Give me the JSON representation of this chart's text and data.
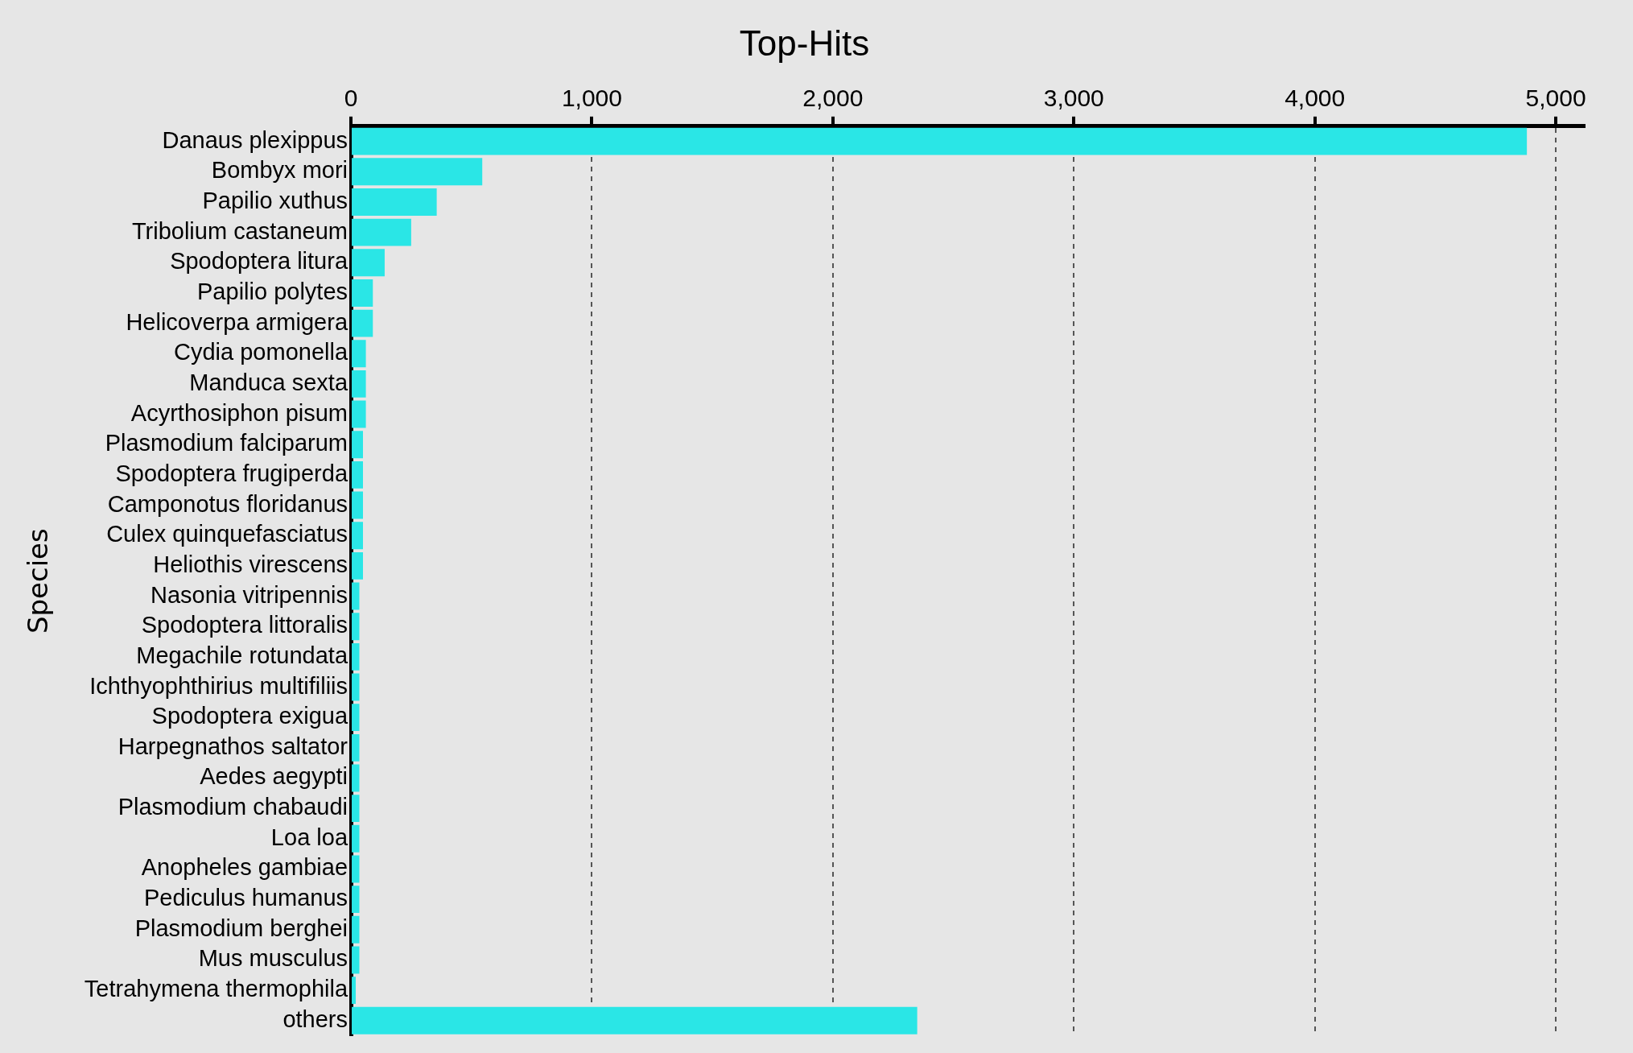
{
  "chart_data": {
    "type": "bar",
    "orientation": "horizontal",
    "title": "Top-Hits",
    "ylabel": "Species",
    "categories": [
      "Danaus plexippus",
      "Bombyx mori",
      "Papilio xuthus",
      "Tribolium castaneum",
      "Spodoptera litura",
      "Papilio polytes",
      "Helicoverpa armigera",
      "Cydia pomonella",
      "Manduca sexta",
      "Acyrthosiphon pisum",
      "Plasmodium falciparum",
      "Spodoptera frugiperda",
      "Camponotus floridanus",
      "Culex quinquefasciatus",
      "Heliothis virescens",
      "Nasonia vitripennis",
      "Spodoptera littoralis",
      "Megachile rotundata",
      "Ichthyophthirius multifiliis",
      "Spodoptera exigua",
      "Harpegnathos saltator",
      "Aedes aegypti",
      "Plasmodium chabaudi",
      "Loa loa",
      "Anopheles gambiae",
      "Pediculus humanus",
      "Plasmodium berghei",
      "Mus musculus",
      "Tetrahymena thermophila",
      "others"
    ],
    "values": [
      4880,
      545,
      356,
      250,
      140,
      91,
      91,
      62,
      62,
      62,
      50,
      50,
      50,
      50,
      50,
      35,
      35,
      35,
      35,
      35,
      35,
      35,
      35,
      35,
      35,
      35,
      35,
      35,
      20,
      2350
    ],
    "color": "#2ae6e6",
    "xlim": [
      0,
      5120
    ],
    "xticks": [
      {
        "value": 0,
        "label": "0"
      },
      {
        "value": 1000,
        "label": "1,000"
      },
      {
        "value": 2000,
        "label": "2,000"
      },
      {
        "value": 3000,
        "label": "3,000"
      },
      {
        "value": 4000,
        "label": "4,000"
      },
      {
        "value": 5000,
        "label": "5,000"
      }
    ],
    "grid": "x",
    "legend": false
  }
}
